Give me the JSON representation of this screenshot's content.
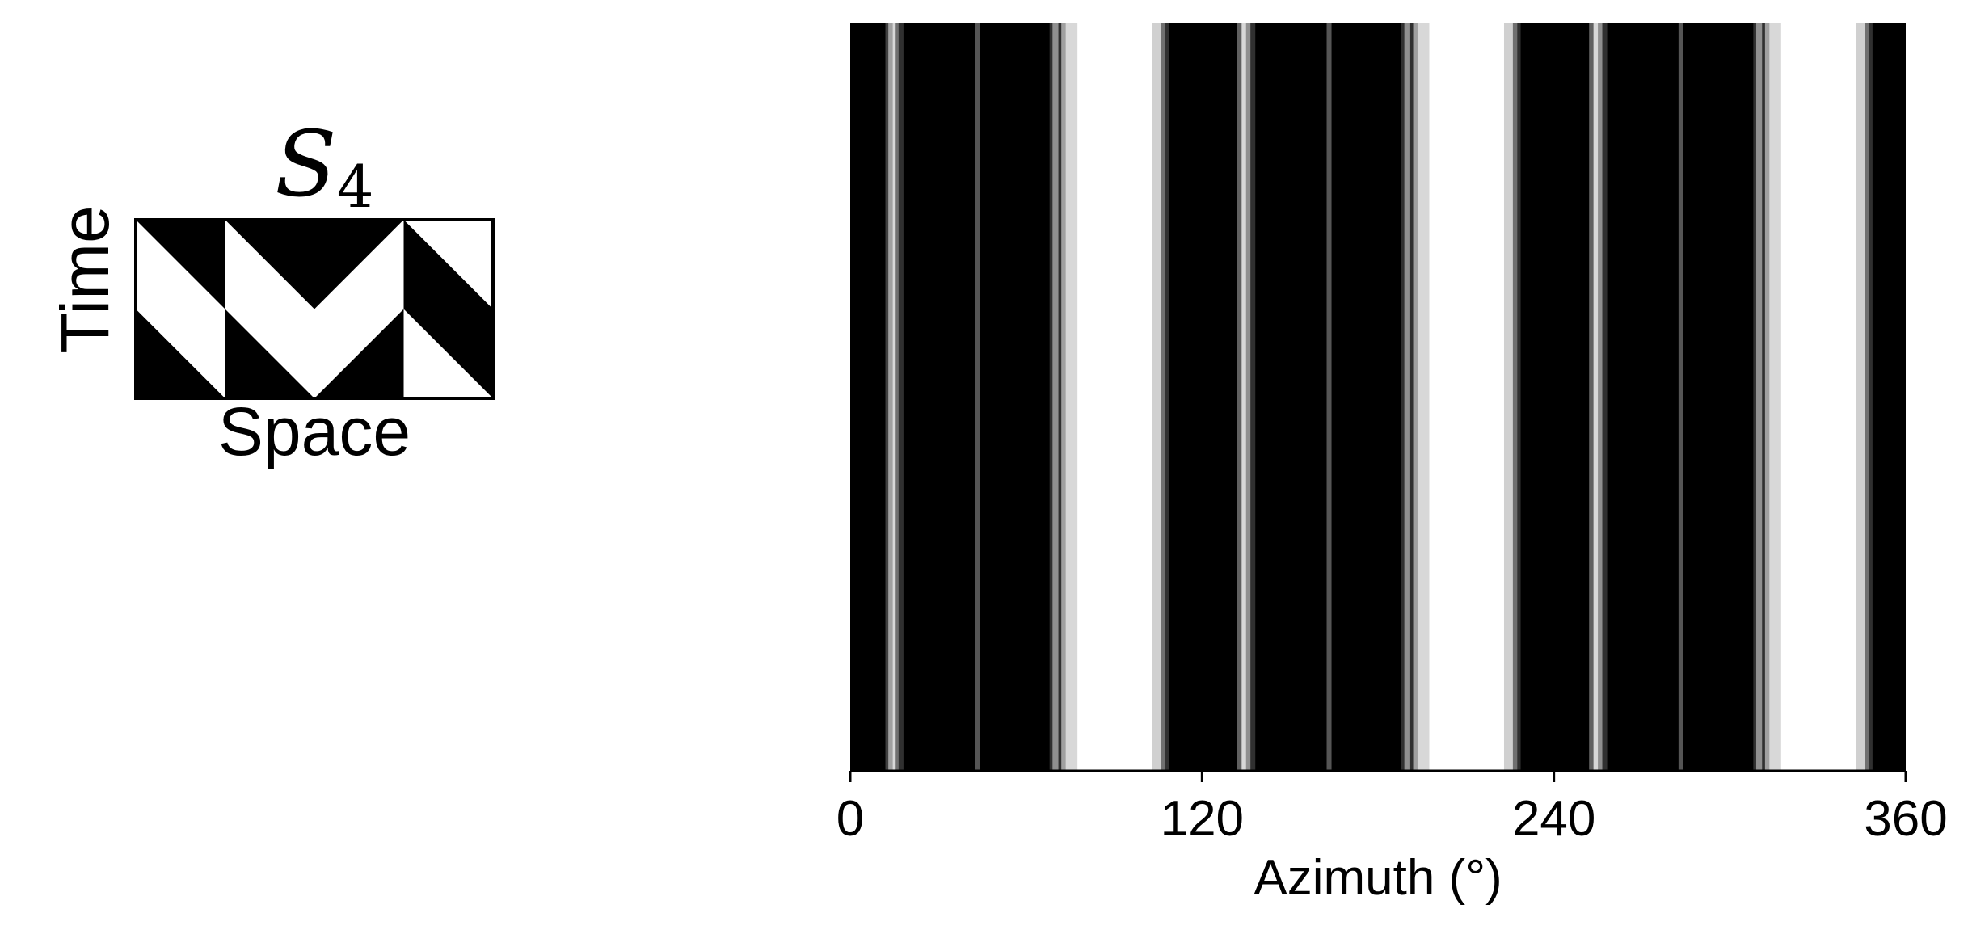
{
  "legend_panel": {
    "title_symbol": "S",
    "title_subscript": "4",
    "ylabel": "Time",
    "xlabel": "Space",
    "pattern": {
      "columns": 4,
      "rows": 2,
      "triangles_white": [
        {
          "col": 0,
          "row": 0,
          "half": "lower-left"
        },
        {
          "col": 0,
          "row": 1,
          "half": "upper-right"
        },
        {
          "col": 1,
          "row": 0,
          "half": "lower-left"
        },
        {
          "col": 1,
          "row": 1,
          "half": "upper-right"
        },
        {
          "col": 2,
          "row": 0,
          "half": "lower-right"
        },
        {
          "col": 2,
          "row": 1,
          "half": "upper-left"
        },
        {
          "col": 3,
          "row": 0,
          "half": "upper-right"
        },
        {
          "col": 3,
          "row": 1,
          "half": "lower-left"
        }
      ]
    }
  },
  "chart_data": {
    "type": "heatmap",
    "xlabel": "Azimuth (°)",
    "xlim": [
      0,
      360
    ],
    "xticks": [
      0,
      120,
      240,
      360
    ],
    "colors": {
      "min": "#000000",
      "max": "#ffffff"
    },
    "bands": [
      {
        "start": 12.0,
        "end": 13.0,
        "gray": "#404040"
      },
      {
        "start": 13.0,
        "end": 14.5,
        "gray": "#a0a0a0"
      },
      {
        "start": 14.5,
        "end": 15.5,
        "gray": "#d8d8d8"
      },
      {
        "start": 15.5,
        "end": 16.5,
        "gray": "#707070"
      },
      {
        "start": 16.5,
        "end": 18.0,
        "gray": "#303030"
      },
      {
        "start": 42.5,
        "end": 44.0,
        "gray": "#555555"
      },
      {
        "start": 68.0,
        "end": 69.0,
        "gray": "#303030"
      },
      {
        "start": 69.0,
        "end": 71.0,
        "gray": "#909090"
      },
      {
        "start": 71.0,
        "end": 72.0,
        "gray": "#303030"
      },
      {
        "start": 72.0,
        "end": 73.5,
        "gray": "#a0a0a0"
      },
      {
        "start": 73.5,
        "end": 77.5,
        "gray": "#d8d8d8"
      },
      {
        "start": 77.5,
        "end": 103.0,
        "gray": "#ffffff"
      },
      {
        "start": 103.0,
        "end": 106.0,
        "gray": "#d0d0d0"
      },
      {
        "start": 106.0,
        "end": 107.5,
        "gray": "#707070"
      },
      {
        "start": 107.5,
        "end": 108.5,
        "gray": "#303030"
      },
      {
        "start": 132.0,
        "end": 133.5,
        "gray": "#606060"
      },
      {
        "start": 133.5,
        "end": 135.0,
        "gray": "#d8d8d8"
      },
      {
        "start": 135.0,
        "end": 136.5,
        "gray": "#909090"
      },
      {
        "start": 136.5,
        "end": 138.0,
        "gray": "#303030"
      },
      {
        "start": 162.5,
        "end": 164.0,
        "gray": "#555555"
      },
      {
        "start": 188.0,
        "end": 189.0,
        "gray": "#303030"
      },
      {
        "start": 189.0,
        "end": 191.0,
        "gray": "#909090"
      },
      {
        "start": 191.0,
        "end": 192.0,
        "gray": "#303030"
      },
      {
        "start": 192.0,
        "end": 193.5,
        "gray": "#a0a0a0"
      },
      {
        "start": 193.5,
        "end": 197.5,
        "gray": "#d8d8d8"
      },
      {
        "start": 197.5,
        "end": 223.0,
        "gray": "#ffffff"
      },
      {
        "start": 223.0,
        "end": 226.0,
        "gray": "#d0d0d0"
      },
      {
        "start": 226.0,
        "end": 227.5,
        "gray": "#707070"
      },
      {
        "start": 227.5,
        "end": 228.5,
        "gray": "#303030"
      },
      {
        "start": 252.0,
        "end": 253.5,
        "gray": "#606060"
      },
      {
        "start": 253.5,
        "end": 255.0,
        "gray": "#d8d8d8"
      },
      {
        "start": 255.0,
        "end": 256.5,
        "gray": "#909090"
      },
      {
        "start": 256.5,
        "end": 258.0,
        "gray": "#303030"
      },
      {
        "start": 282.5,
        "end": 284.0,
        "gray": "#555555"
      },
      {
        "start": 308.0,
        "end": 309.0,
        "gray": "#303030"
      },
      {
        "start": 309.0,
        "end": 311.0,
        "gray": "#909090"
      },
      {
        "start": 311.0,
        "end": 312.0,
        "gray": "#303030"
      },
      {
        "start": 312.0,
        "end": 313.5,
        "gray": "#a0a0a0"
      },
      {
        "start": 313.5,
        "end": 317.5,
        "gray": "#d8d8d8"
      },
      {
        "start": 317.5,
        "end": 343.0,
        "gray": "#ffffff"
      },
      {
        "start": 343.0,
        "end": 346.0,
        "gray": "#d0d0d0"
      },
      {
        "start": 346.0,
        "end": 347.5,
        "gray": "#707070"
      },
      {
        "start": 347.5,
        "end": 348.5,
        "gray": "#303030"
      }
    ]
  }
}
